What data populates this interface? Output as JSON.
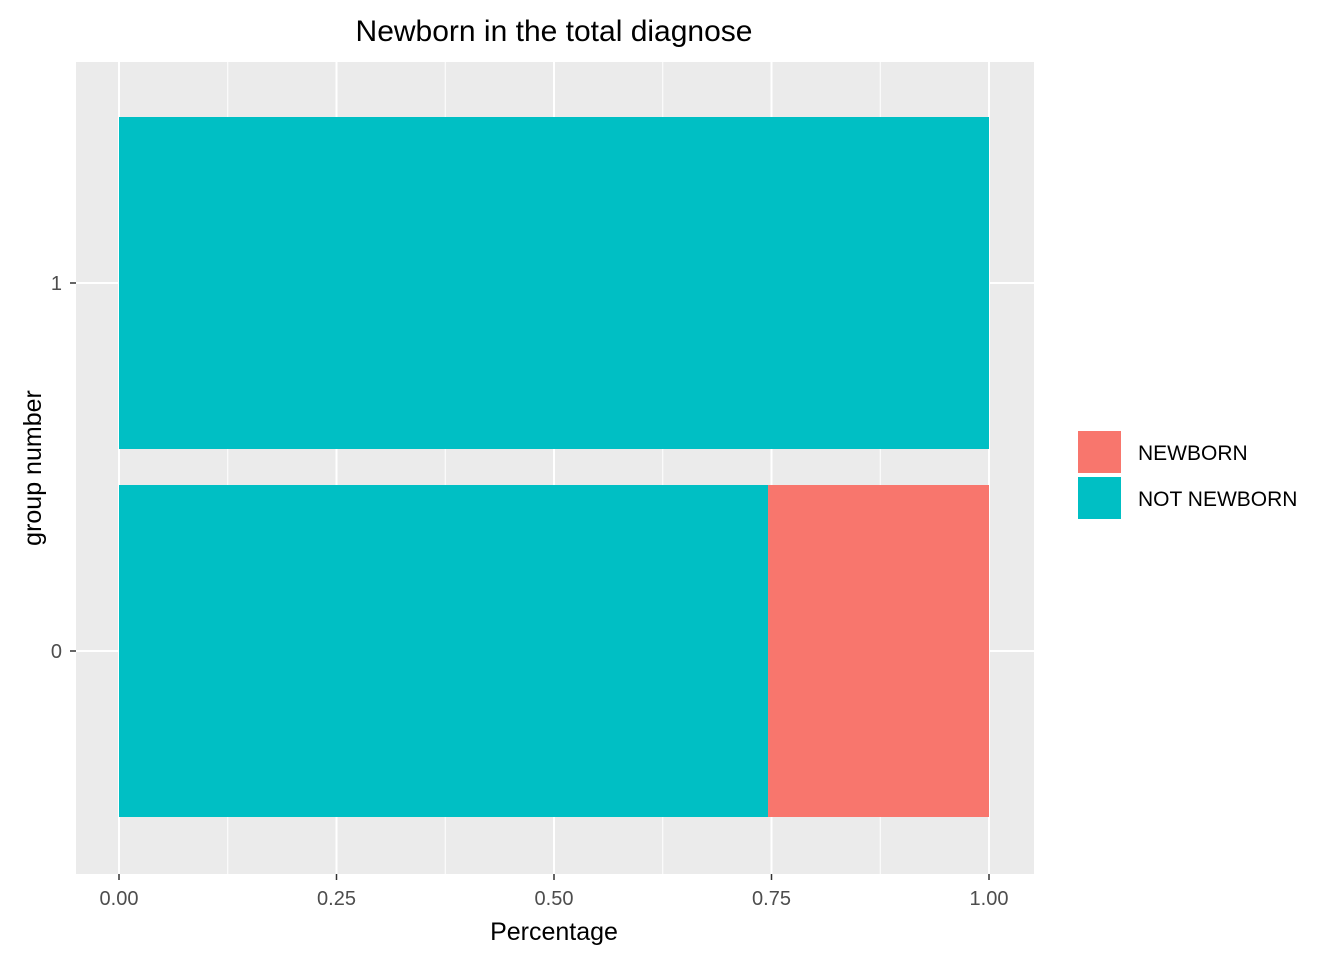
{
  "chart_data": {
    "type": "bar",
    "orientation": "horizontal",
    "stacked": true,
    "title": "Newborn in the total diagnose",
    "xlabel": "Percentage",
    "ylabel": "group number",
    "xlim": [
      0,
      1
    ],
    "x_ticks": [
      "0.00",
      "0.25",
      "0.50",
      "0.75",
      "1.00"
    ],
    "categories": [
      "0",
      "1"
    ],
    "series": [
      {
        "name": "NOT NEWBORN",
        "color": "#00BFC4",
        "values": [
          0.746,
          1.0
        ]
      },
      {
        "name": "NEWBORN",
        "color": "#F8766D",
        "values": [
          0.254,
          0.0
        ]
      }
    ],
    "legend": {
      "placement": "right",
      "entries": [
        {
          "label": "NEWBORN",
          "color": "#F8766D"
        },
        {
          "label": "NOT NEWBORN",
          "color": "#00BFC4"
        }
      ]
    },
    "grid": true,
    "panel_background": "#EBEBEB",
    "grid_color": "#FFFFFF"
  }
}
